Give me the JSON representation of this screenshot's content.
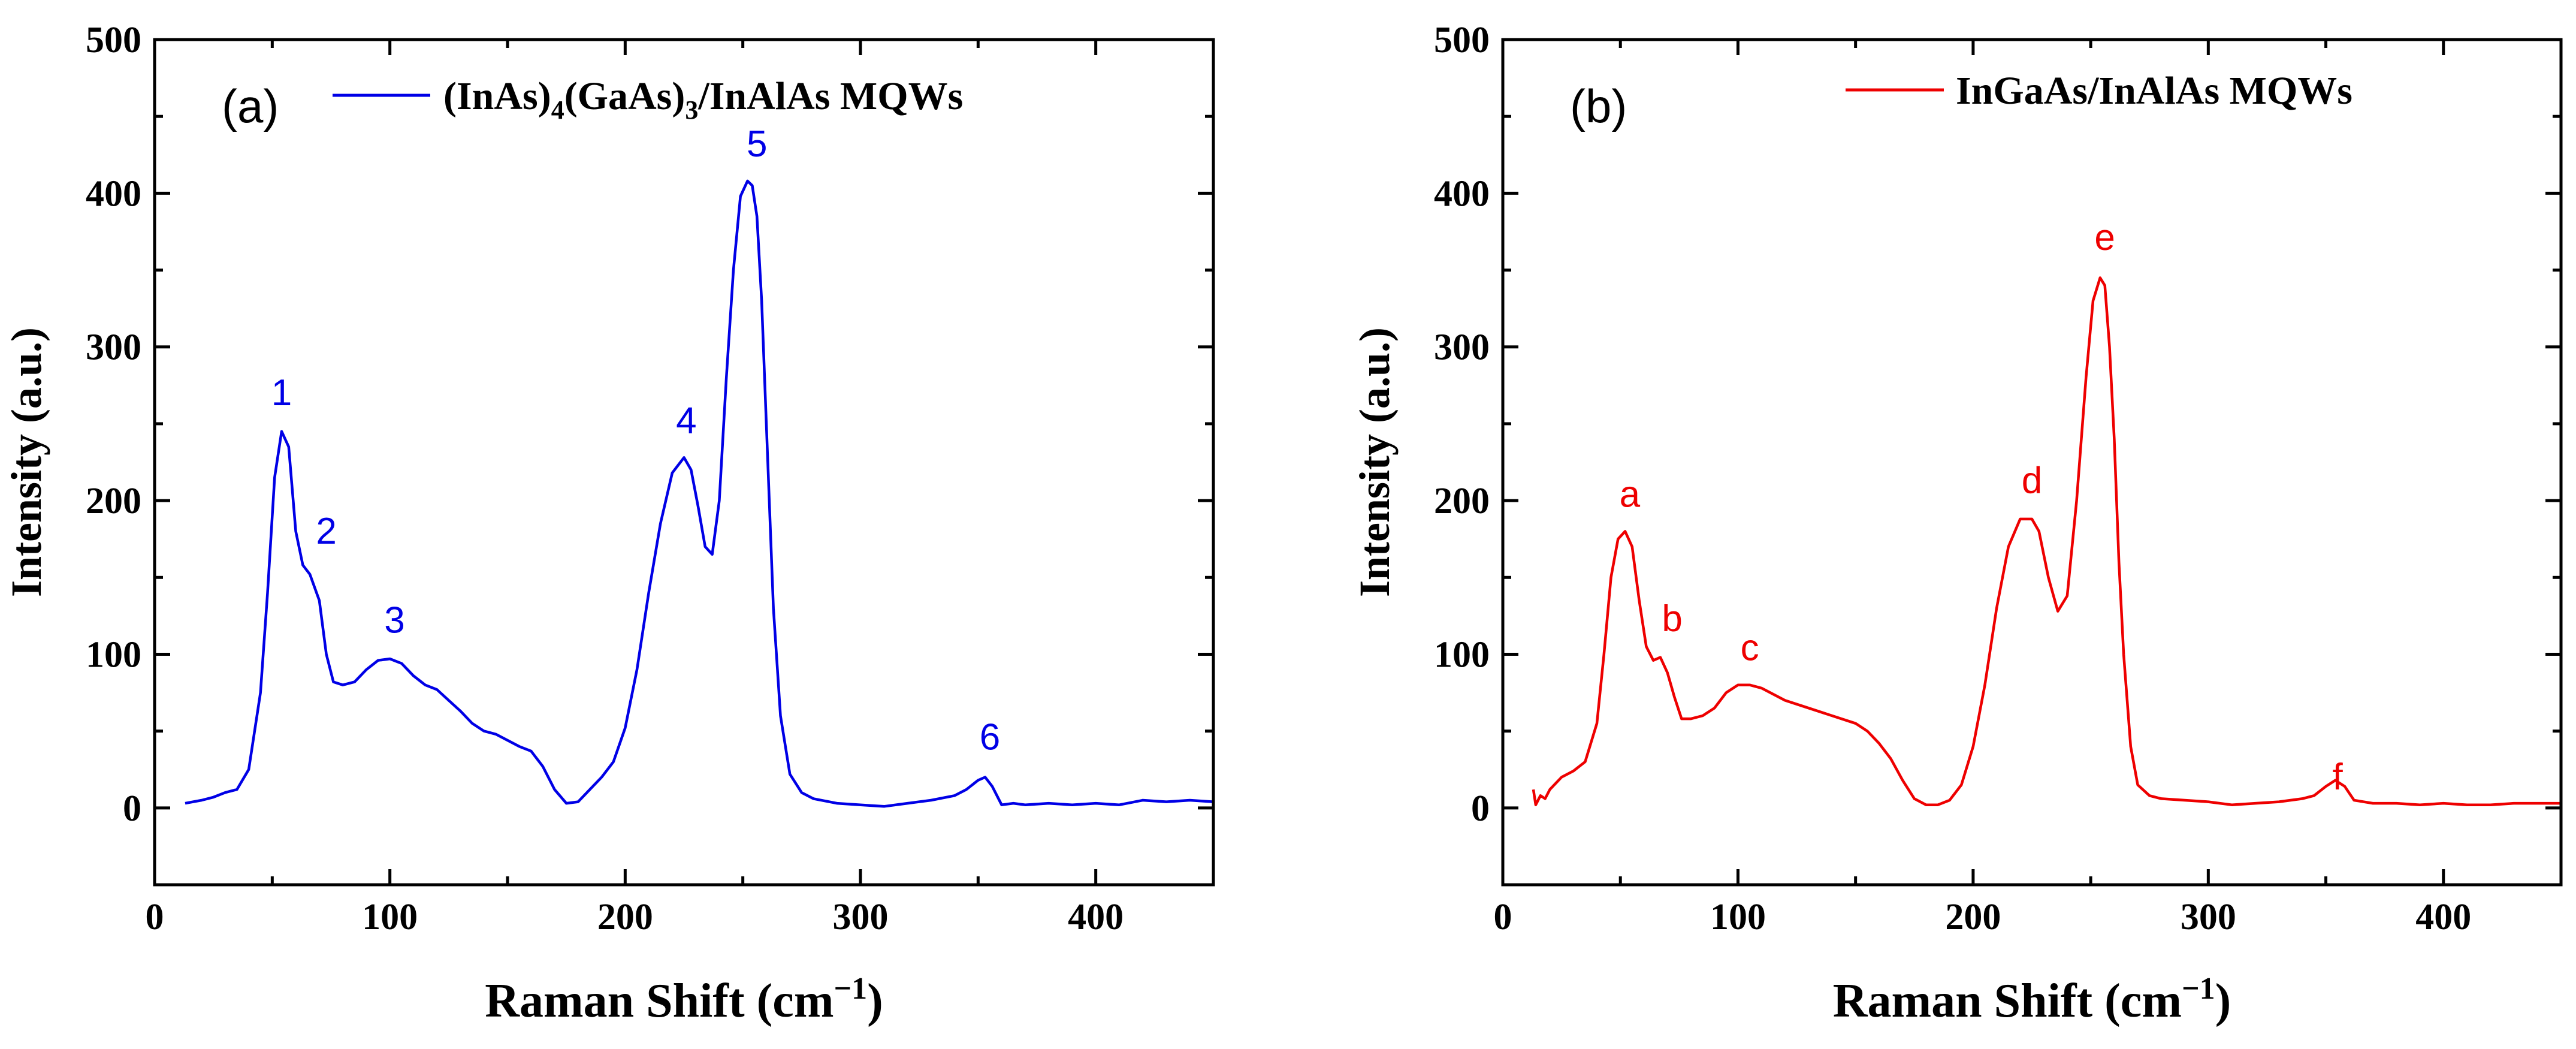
{
  "chart_data": [
    {
      "type": "line",
      "panel_label": "(a)",
      "xlabel": "Raman Shift (cm",
      "xlabel_sup": "−1",
      "xlabel_end": ")",
      "ylabel": "Intensity (a.u.)",
      "xlim": [
        0,
        450
      ],
      "ylim": [
        -50,
        500
      ],
      "x_ticks": [
        0,
        100,
        200,
        300,
        400
      ],
      "y_ticks": [
        0,
        100,
        200,
        300,
        400,
        500
      ],
      "legend_position": "top",
      "series": [
        {
          "name_main": "(InAs)",
          "name_sub1": "4",
          "name_mid": "(GaAs)",
          "name_sub2": "3",
          "name_end": "/InAlAs MQWs",
          "color": "#0000e6",
          "x": [
            13,
            20,
            25,
            30,
            35,
            40,
            45,
            48,
            51,
            54,
            57,
            60,
            63,
            66,
            70,
            73,
            76,
            80,
            85,
            90,
            95,
            100,
            105,
            110,
            115,
            120,
            125,
            130,
            135,
            140,
            145,
            150,
            155,
            160,
            165,
            170,
            175,
            180,
            185,
            190,
            195,
            200,
            205,
            210,
            215,
            220,
            225,
            228,
            231,
            234,
            237,
            240,
            243,
            246,
            249,
            252,
            254,
            256,
            258,
            260,
            263,
            266,
            270,
            275,
            280,
            290,
            300,
            310,
            320,
            330,
            340,
            345,
            350,
            353,
            356,
            360,
            365,
            370,
            380,
            390,
            400,
            410,
            420,
            430,
            440,
            450
          ],
          "y": [
            3,
            5,
            7,
            10,
            12,
            25,
            75,
            140,
            215,
            245,
            235,
            180,
            158,
            152,
            135,
            100,
            82,
            80,
            82,
            90,
            96,
            97,
            94,
            86,
            80,
            77,
            70,
            63,
            55,
            50,
            48,
            44,
            40,
            37,
            27,
            12,
            3,
            4,
            12,
            20,
            30,
            52,
            90,
            140,
            185,
            218,
            228,
            220,
            196,
            170,
            165,
            200,
            280,
            350,
            398,
            408,
            405,
            385,
            330,
            250,
            130,
            60,
            22,
            10,
            6,
            3,
            2,
            1,
            3,
            5,
            8,
            12,
            18,
            20,
            14,
            2,
            3,
            2,
            3,
            2,
            3,
            2,
            5,
            4,
            5,
            4
          ]
        }
      ],
      "annotations": [
        {
          "text": "1",
          "x": 54,
          "y": 262
        },
        {
          "text": "2",
          "x": 73,
          "y": 172
        },
        {
          "text": "3",
          "x": 102,
          "y": 114
        },
        {
          "text": "4",
          "x": 226,
          "y": 244
        },
        {
          "text": "5",
          "x": 256,
          "y": 424
        },
        {
          "text": "6",
          "x": 355,
          "y": 38
        }
      ]
    },
    {
      "type": "line",
      "panel_label": "(b)",
      "xlabel": "Raman Shift (cm",
      "xlabel_sup": "−1",
      "xlabel_end": ")",
      "ylabel": "Intensity (a.u.)",
      "xlim": [
        0,
        450
      ],
      "ylim": [
        -50,
        500
      ],
      "x_ticks": [
        0,
        100,
        200,
        300,
        400
      ],
      "y_ticks": [
        0,
        100,
        200,
        300,
        400,
        500
      ],
      "legend_position": "top",
      "series": [
        {
          "name_main": "InGaAs/InAlAs MQWs",
          "color": "#ee0000",
          "x": [
            13,
            14,
            16,
            18,
            20,
            25,
            30,
            35,
            40,
            43,
            46,
            49,
            52,
            55,
            58,
            61,
            64,
            67,
            70,
            73,
            76,
            80,
            85,
            90,
            95,
            100,
            105,
            110,
            115,
            120,
            130,
            140,
            150,
            155,
            160,
            165,
            170,
            175,
            180,
            185,
            190,
            195,
            200,
            205,
            210,
            215,
            220,
            225,
            228,
            232,
            236,
            240,
            244,
            248,
            251,
            254,
            256,
            258,
            260,
            262,
            264,
            267,
            270,
            275,
            280,
            290,
            300,
            310,
            320,
            330,
            340,
            345,
            350,
            354,
            358,
            362,
            370,
            380,
            390,
            400,
            410,
            420,
            430,
            440,
            450
          ],
          "y": [
            12,
            2,
            8,
            6,
            12,
            20,
            24,
            30,
            55,
            100,
            150,
            175,
            180,
            170,
            135,
            105,
            96,
            98,
            88,
            72,
            58,
            58,
            60,
            65,
            75,
            80,
            80,
            78,
            74,
            70,
            65,
            60,
            55,
            50,
            42,
            32,
            18,
            6,
            2,
            2,
            5,
            15,
            40,
            80,
            130,
            170,
            188,
            188,
            180,
            150,
            128,
            138,
            200,
            280,
            330,
            345,
            340,
            300,
            240,
            160,
            100,
            40,
            15,
            8,
            6,
            5,
            4,
            2,
            3,
            4,
            6,
            8,
            14,
            18,
            14,
            5,
            3,
            3,
            2,
            3,
            2,
            2,
            3,
            3,
            3
          ]
        }
      ],
      "annotations": [
        {
          "text": "a",
          "x": 54,
          "y": 196
        },
        {
          "text": "b",
          "x": 72,
          "y": 115
        },
        {
          "text": "c",
          "x": 105,
          "y": 96
        },
        {
          "text": "d",
          "x": 225,
          "y": 205
        },
        {
          "text": "e",
          "x": 256,
          "y": 363
        },
        {
          "text": "f",
          "x": 355,
          "y": 12
        }
      ]
    }
  ]
}
